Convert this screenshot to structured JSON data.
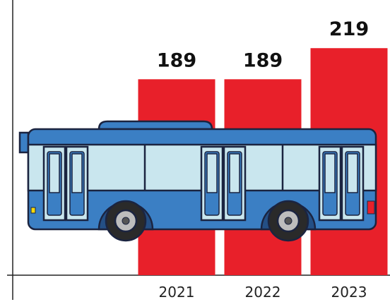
{
  "chart_data": {
    "type": "bar",
    "categories": [
      "2021",
      "2022",
      "2023"
    ],
    "values": [
      189,
      189,
      219
    ],
    "color": "#e8202a",
    "ylim": [
      0,
      260
    ],
    "grid": false
  }
}
